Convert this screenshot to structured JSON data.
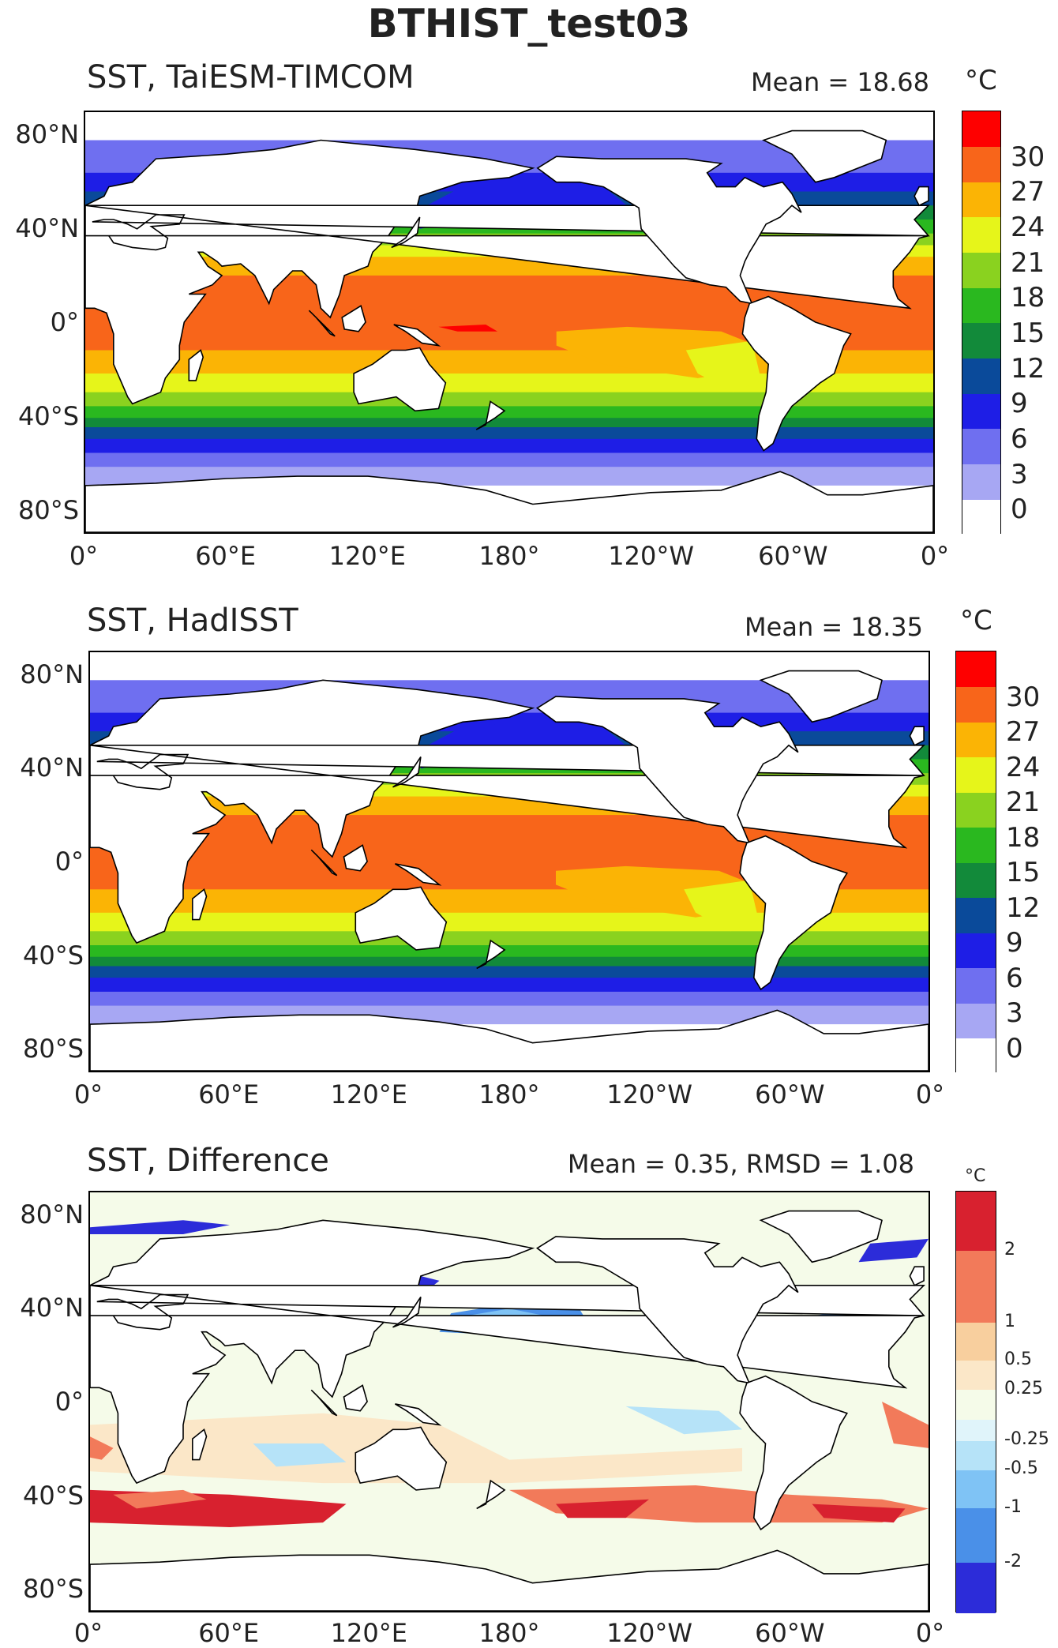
{
  "figure_title": "BTHIST_test03",
  "colors": {
    "sst_levels": [
      "#ffffff",
      "#a7a7f3",
      "#6f6ff0",
      "#1e1ee6",
      "#0a4a9a",
      "#128a3a",
      "#2ab81f",
      "#8ad21f",
      "#e6f51a",
      "#fbb405",
      "#f8651a",
      "#fe0000"
    ],
    "diff_levels": [
      "#2c2cd9",
      "#4a90e8",
      "#7fc3f5",
      "#b6e3f8",
      "#e0f4fa",
      "#f5fbe9",
      "#fbe7c8",
      "#f8cf9e",
      "#f27a5a",
      "#d8212f"
    ],
    "land": "#ffffff",
    "coast": "#000000"
  },
  "axes": {
    "lat_ticks": [
      "80°N",
      "40°N",
      "0°",
      "40°S",
      "80°S"
    ],
    "lon_ticks": [
      "0°",
      "60°E",
      "120°E",
      "180°",
      "120°W",
      "60°W",
      "0°"
    ]
  },
  "panels": [
    {
      "title": "SST, TaiESM-TIMCOM",
      "stat": "Mean = 18.68",
      "colorbar": {
        "unit": "°C",
        "labels": [
          "30",
          "27",
          "24",
          "21",
          "18",
          "15",
          "12",
          "9",
          "6",
          "3",
          "0"
        ]
      }
    },
    {
      "title": "SST, HadISST",
      "stat": "Mean = 18.35",
      "colorbar": {
        "unit": "°C",
        "labels": [
          "30",
          "27",
          "24",
          "21",
          "18",
          "15",
          "12",
          "9",
          "6",
          "3",
          "0"
        ]
      }
    },
    {
      "title": "SST, Difference",
      "stat": "Mean = 0.35, RMSD = 1.08",
      "colorbar": {
        "unit": "°C",
        "labels": [
          "2",
          "1",
          "0.5",
          "0.25",
          "-0.25",
          "-0.5",
          "-1",
          "-2"
        ]
      }
    }
  ]
}
